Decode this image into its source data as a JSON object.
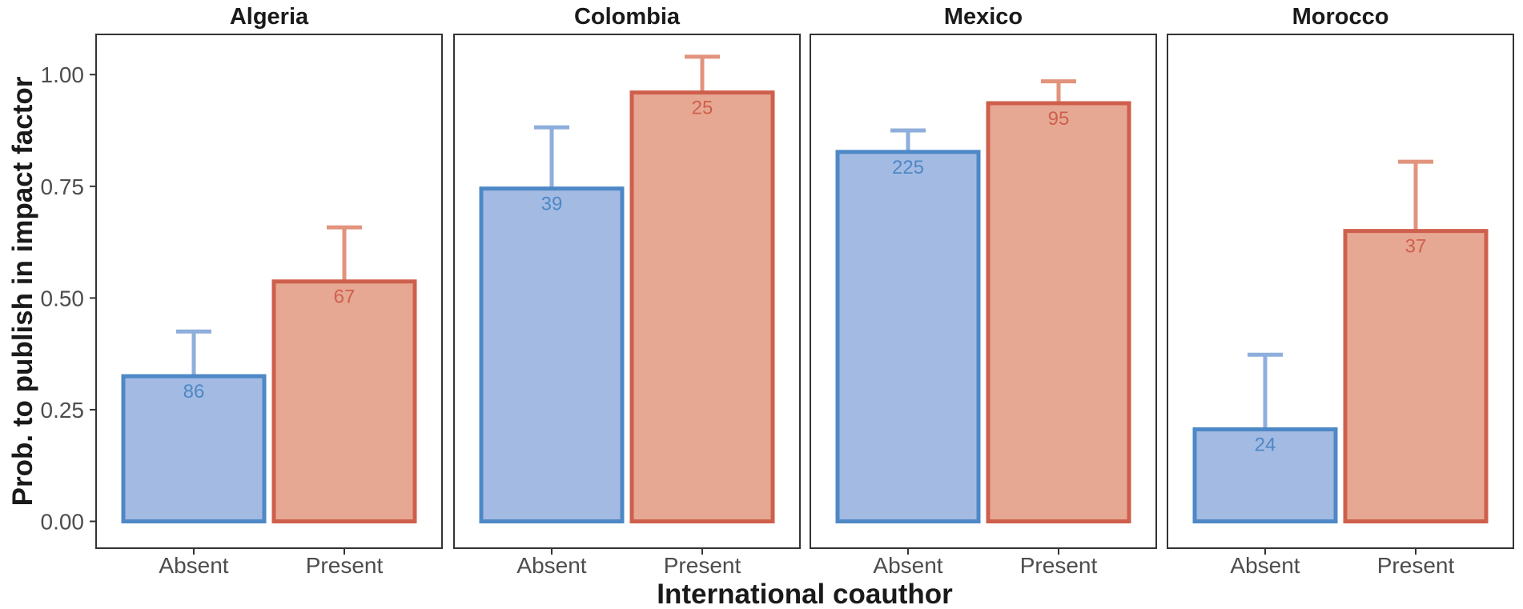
{
  "chart_data": {
    "type": "bar",
    "facets": [
      "Algeria",
      "Colombia",
      "Mexico",
      "Morocco"
    ],
    "categories": [
      "Absent",
      "Present"
    ],
    "values": {
      "Algeria": [
        0.325,
        0.537
      ],
      "Colombia": [
        0.745,
        0.96
      ],
      "Mexico": [
        0.827,
        0.936
      ],
      "Morocco": [
        0.206,
        0.65
      ]
    },
    "error_upper": {
      "Algeria": [
        0.425,
        0.658
      ],
      "Colombia": [
        0.882,
        1.04
      ],
      "Mexico": [
        0.875,
        0.985
      ],
      "Morocco": [
        0.373,
        0.805
      ]
    },
    "bar_labels": {
      "Algeria": [
        "86",
        "67"
      ],
      "Colombia": [
        "39",
        "25"
      ],
      "Mexico": [
        "225",
        "95"
      ],
      "Morocco": [
        "24",
        "37"
      ]
    },
    "xlabel": "International coauthor",
    "ylabel": "Prob. to publish in impact factor",
    "ylim": [
      -0.06,
      1.09
    ],
    "yticks": [
      0,
      0.25,
      0.5,
      0.75,
      1.0
    ],
    "ytick_labels": [
      "0.00",
      "0.25",
      "0.50",
      "0.75",
      "1.00"
    ],
    "grid": false,
    "legend": "none",
    "colors": {
      "Absent": {
        "fill": "#a3bae2",
        "stroke": "#4e88c6",
        "error": "#8eaedb",
        "label": "#4e88c6"
      },
      "Present": {
        "fill": "#e6a893",
        "stroke": "#cf5f4d",
        "error": "#e2937d",
        "label": "#cf5f4d"
      }
    }
  }
}
